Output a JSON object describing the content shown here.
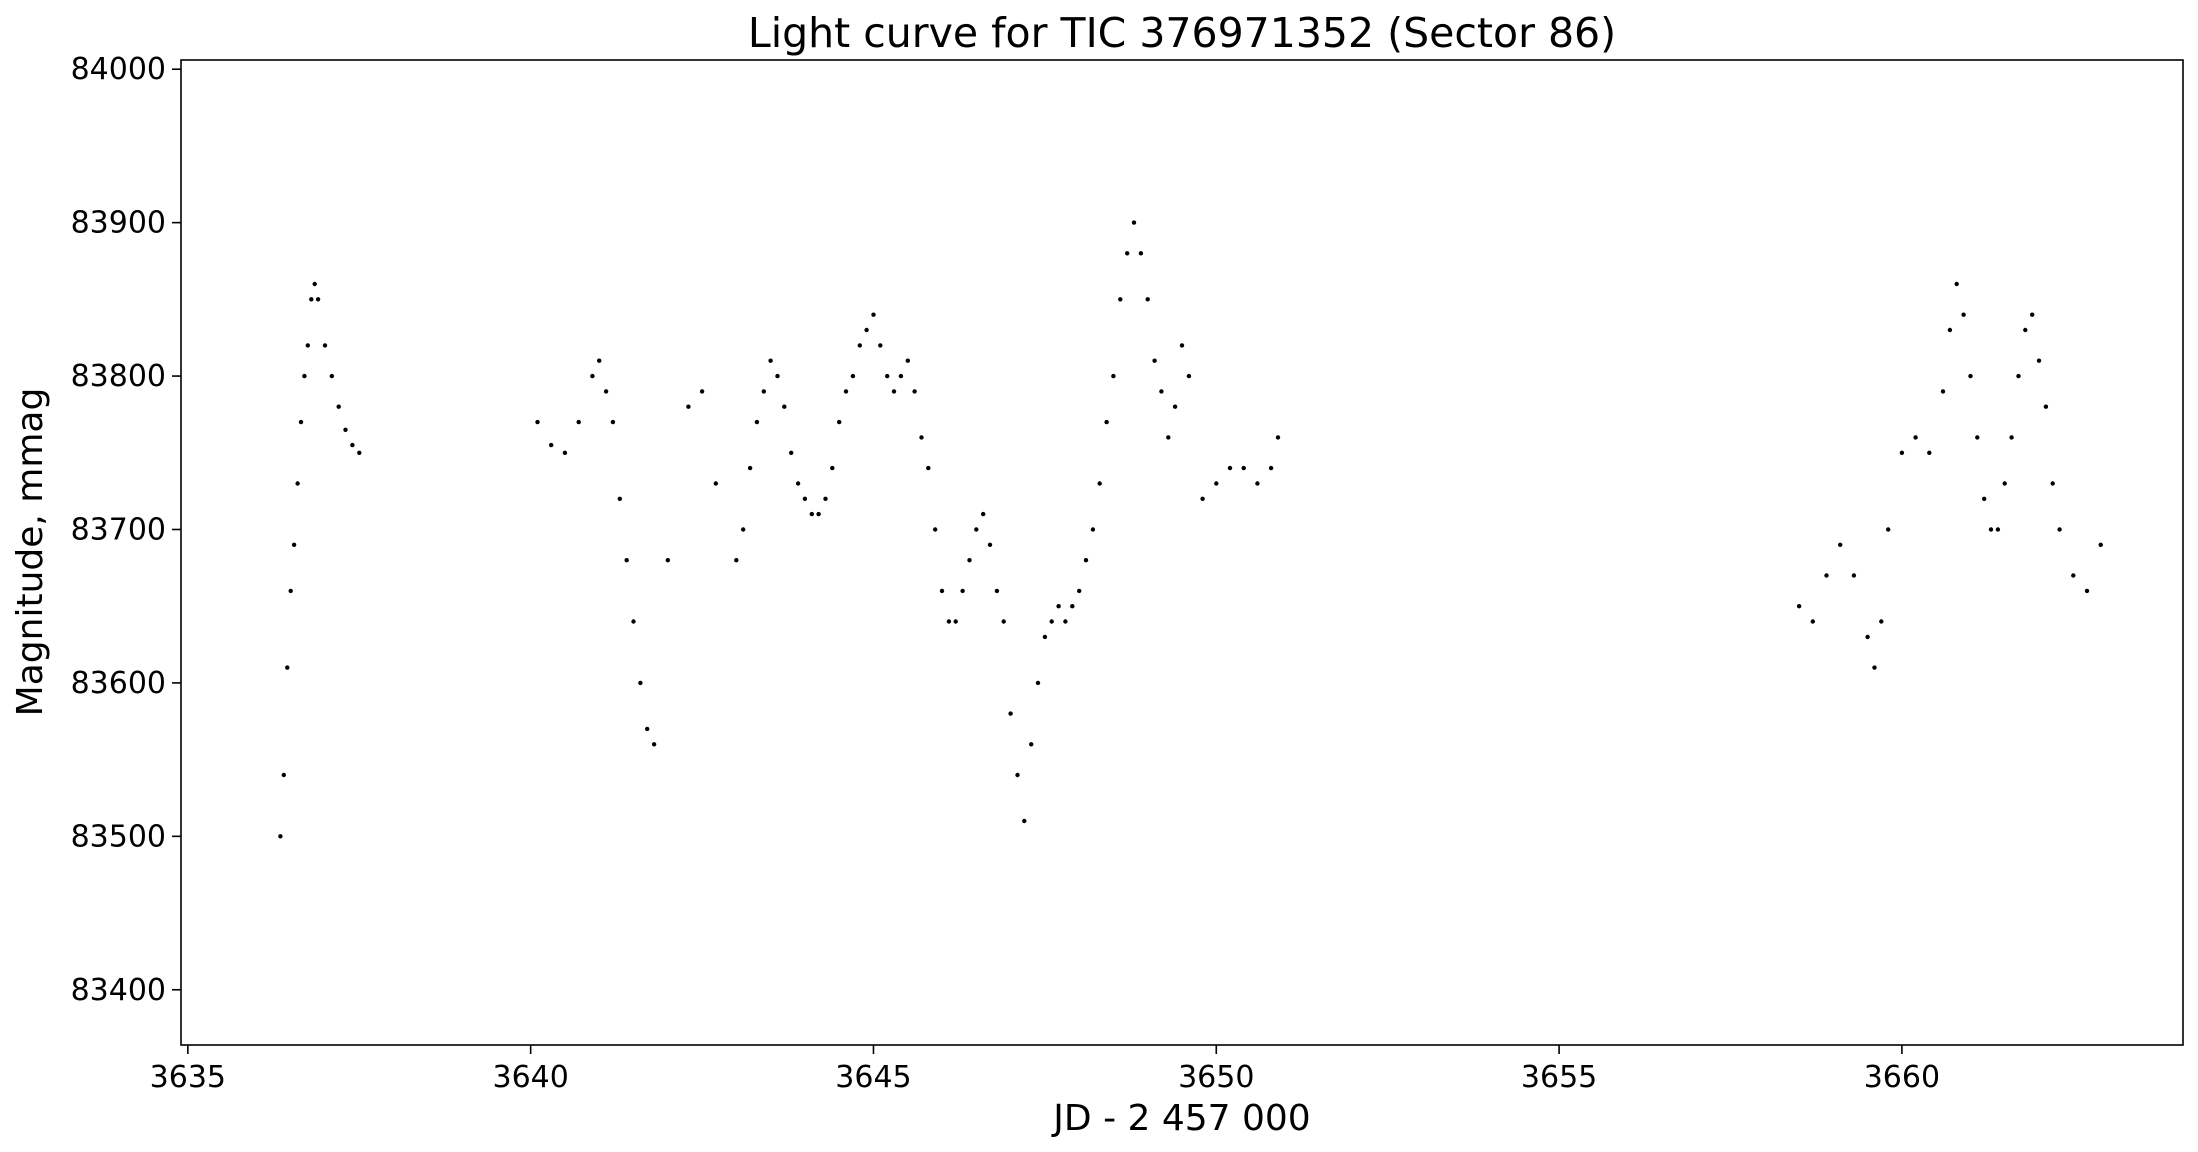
{
  "chart_data": {
    "type": "scatter",
    "title": "Light curve for TIC 376971352 (Sector 86)",
    "xlabel": "JD - 2 457 000",
    "ylabel": "Magnitude, mmag",
    "xlim": [
      3634.9,
      3664.1
    ],
    "ylim": [
      83364,
      84006
    ],
    "xticks": [
      3635,
      3640,
      3645,
      3650,
      3655,
      3660
    ],
    "yticks": [
      83400,
      83500,
      83600,
      83700,
      83800,
      83900,
      84000
    ],
    "grid": false,
    "marker_color": "#000000",
    "series": [
      {
        "points": [
          [
            3636.35,
            83500
          ],
          [
            3636.4,
            83540
          ],
          [
            3636.45,
            83610
          ],
          [
            3636.5,
            83660
          ],
          [
            3636.55,
            83690
          ],
          [
            3636.6,
            83730
          ],
          [
            3636.65,
            83770
          ],
          [
            3636.7,
            83800
          ],
          [
            3636.75,
            83820
          ],
          [
            3636.8,
            83850
          ],
          [
            3636.85,
            83860
          ],
          [
            3636.9,
            83850
          ],
          [
            3637.0,
            83820
          ],
          [
            3637.1,
            83800
          ],
          [
            3637.2,
            83780
          ],
          [
            3637.3,
            83765
          ],
          [
            3637.4,
            83755
          ],
          [
            3637.5,
            83750
          ],
          [
            3640.1,
            83770
          ],
          [
            3640.3,
            83755
          ],
          [
            3640.5,
            83750
          ],
          [
            3640.7,
            83770
          ],
          [
            3640.9,
            83800
          ],
          [
            3641.0,
            83810
          ],
          [
            3641.1,
            83790
          ],
          [
            3641.2,
            83770
          ],
          [
            3641.3,
            83720
          ],
          [
            3641.4,
            83680
          ],
          [
            3641.5,
            83640
          ],
          [
            3641.6,
            83600
          ],
          [
            3641.7,
            83570
          ],
          [
            3641.8,
            83560
          ],
          [
            3642.0,
            83680
          ],
          [
            3642.3,
            83780
          ],
          [
            3642.5,
            83790
          ],
          [
            3642.7,
            83730
          ],
          [
            3643.0,
            83680
          ],
          [
            3643.1,
            83700
          ],
          [
            3643.2,
            83740
          ],
          [
            3643.3,
            83770
          ],
          [
            3643.4,
            83790
          ],
          [
            3643.5,
            83810
          ],
          [
            3643.6,
            83800
          ],
          [
            3643.7,
            83780
          ],
          [
            3643.8,
            83750
          ],
          [
            3643.9,
            83730
          ],
          [
            3644.0,
            83720
          ],
          [
            3644.1,
            83710
          ],
          [
            3644.2,
            83710
          ],
          [
            3644.3,
            83720
          ],
          [
            3644.4,
            83740
          ],
          [
            3644.5,
            83770
          ],
          [
            3644.6,
            83790
          ],
          [
            3644.7,
            83800
          ],
          [
            3644.8,
            83820
          ],
          [
            3644.9,
            83830
          ],
          [
            3645.0,
            83840
          ],
          [
            3645.1,
            83820
          ],
          [
            3645.2,
            83800
          ],
          [
            3645.3,
            83790
          ],
          [
            3645.4,
            83800
          ],
          [
            3645.5,
            83810
          ],
          [
            3645.6,
            83790
          ],
          [
            3645.7,
            83760
          ],
          [
            3645.8,
            83740
          ],
          [
            3645.9,
            83700
          ],
          [
            3646.0,
            83660
          ],
          [
            3646.1,
            83640
          ],
          [
            3646.2,
            83640
          ],
          [
            3646.3,
            83660
          ],
          [
            3646.4,
            83680
          ],
          [
            3646.5,
            83700
          ],
          [
            3646.6,
            83710
          ],
          [
            3646.7,
            83690
          ],
          [
            3646.8,
            83660
          ],
          [
            3646.9,
            83640
          ],
          [
            3647.0,
            83580
          ],
          [
            3647.1,
            83540
          ],
          [
            3647.2,
            83510
          ],
          [
            3647.3,
            83560
          ],
          [
            3647.4,
            83600
          ],
          [
            3647.5,
            83630
          ],
          [
            3647.6,
            83640
          ],
          [
            3647.7,
            83650
          ],
          [
            3647.8,
            83640
          ],
          [
            3647.9,
            83650
          ],
          [
            3648.0,
            83660
          ],
          [
            3648.1,
            83680
          ],
          [
            3648.2,
            83700
          ],
          [
            3648.3,
            83730
          ],
          [
            3648.4,
            83770
          ],
          [
            3648.5,
            83800
          ],
          [
            3648.6,
            83850
          ],
          [
            3648.7,
            83880
          ],
          [
            3648.8,
            83900
          ],
          [
            3648.9,
            83880
          ],
          [
            3649.0,
            83850
          ],
          [
            3649.1,
            83810
          ],
          [
            3649.2,
            83790
          ],
          [
            3649.3,
            83760
          ],
          [
            3649.4,
            83780
          ],
          [
            3649.5,
            83820
          ],
          [
            3649.6,
            83800
          ],
          [
            3649.8,
            83720
          ],
          [
            3650.0,
            83730
          ],
          [
            3650.2,
            83740
          ],
          [
            3650.4,
            83740
          ],
          [
            3650.6,
            83730
          ],
          [
            3650.8,
            83740
          ],
          [
            3650.9,
            83760
          ],
          [
            3658.5,
            83650
          ],
          [
            3658.7,
            83640
          ],
          [
            3658.9,
            83670
          ],
          [
            3659.1,
            83690
          ],
          [
            3659.3,
            83670
          ],
          [
            3659.5,
            83630
          ],
          [
            3659.6,
            83610
          ],
          [
            3659.7,
            83640
          ],
          [
            3659.8,
            83700
          ],
          [
            3660.0,
            83750
          ],
          [
            3660.2,
            83760
          ],
          [
            3660.4,
            83750
          ],
          [
            3660.6,
            83790
          ],
          [
            3660.7,
            83830
          ],
          [
            3660.8,
            83860
          ],
          [
            3660.9,
            83840
          ],
          [
            3661.0,
            83800
          ],
          [
            3661.1,
            83760
          ],
          [
            3661.2,
            83720
          ],
          [
            3661.3,
            83700
          ],
          [
            3661.4,
            83700
          ],
          [
            3661.5,
            83730
          ],
          [
            3661.6,
            83760
          ],
          [
            3661.7,
            83800
          ],
          [
            3661.8,
            83830
          ],
          [
            3661.9,
            83840
          ],
          [
            3662.0,
            83810
          ],
          [
            3662.1,
            83780
          ],
          [
            3662.2,
            83730
          ],
          [
            3662.3,
            83700
          ],
          [
            3662.5,
            83670
          ],
          [
            3662.7,
            83660
          ],
          [
            3662.9,
            83690
          ]
        ]
      }
    ]
  }
}
